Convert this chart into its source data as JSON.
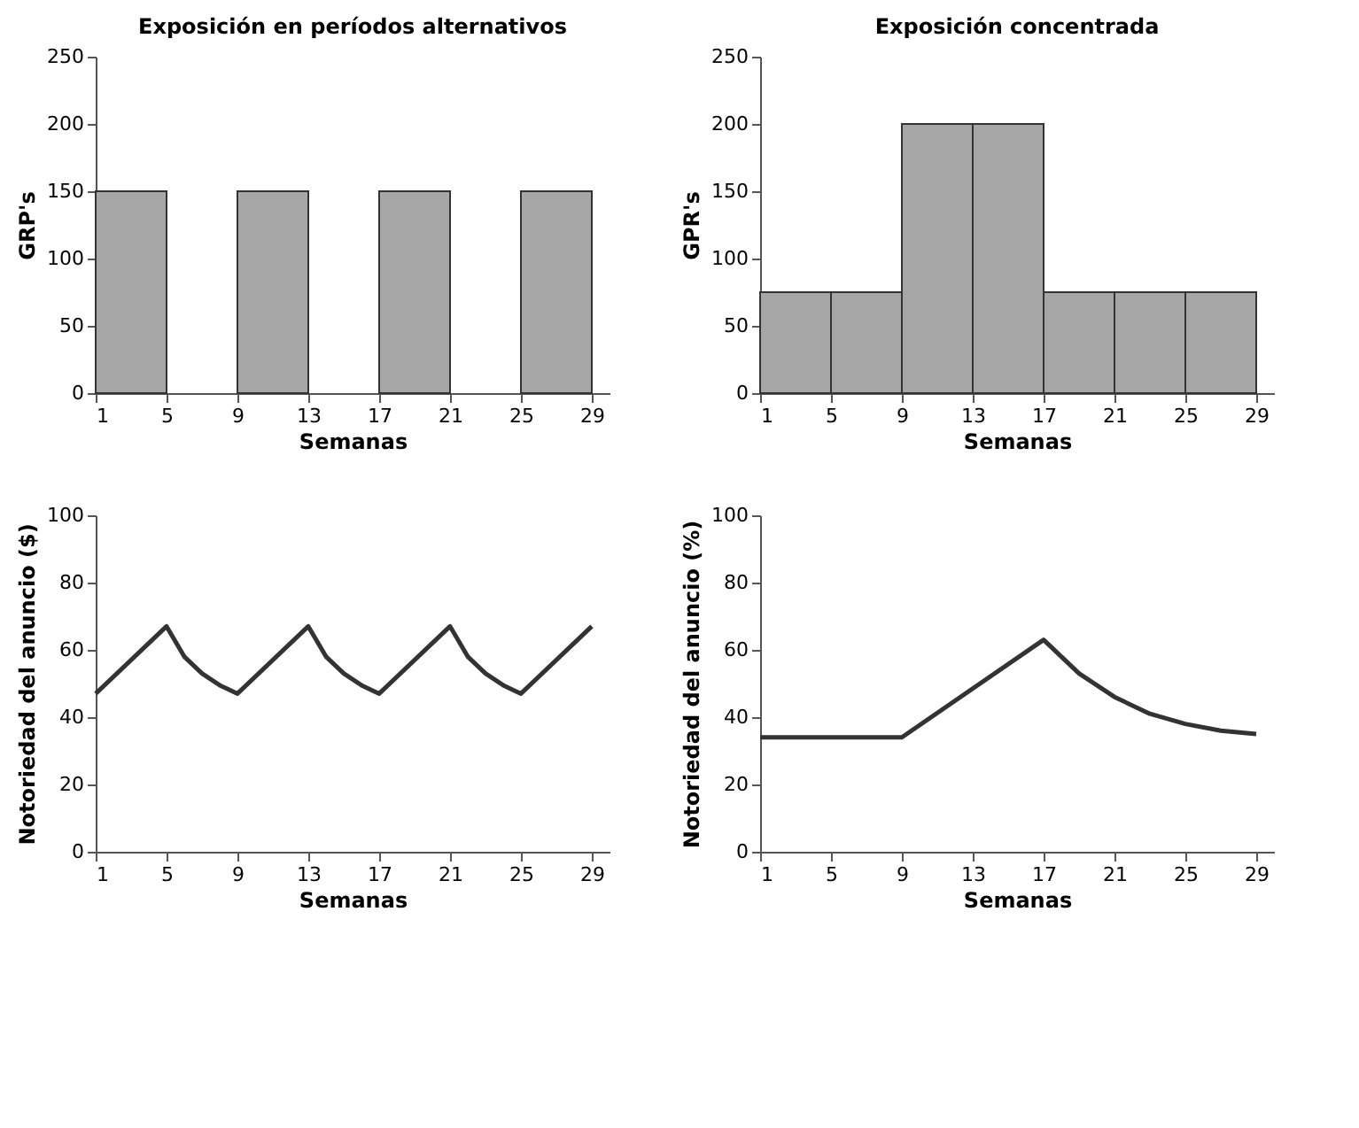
{
  "chart_data": [
    {
      "type": "histogram",
      "title": "Exposición en períodos alternativos",
      "xlabel": "Semanas",
      "ylabel": "GRP's",
      "bins": [
        1,
        5,
        9,
        13,
        17,
        21,
        25,
        29
      ],
      "values": [
        150,
        0,
        150,
        0,
        150,
        0,
        150
      ],
      "color": "#a6a6a6",
      "xlim": [
        1,
        30
      ],
      "xticks": [
        1,
        5,
        9,
        13,
        17,
        21,
        25,
        29
      ],
      "ylim": [
        0,
        250
      ],
      "yticks": [
        0,
        50,
        100,
        150,
        200,
        250
      ],
      "grid": false
    },
    {
      "type": "histogram",
      "title": "Exposición concentrada",
      "xlabel": "Semanas",
      "ylabel": "GPR's",
      "bins": [
        1,
        5,
        9,
        13,
        17,
        21,
        25,
        29
      ],
      "values": [
        75,
        75,
        200,
        200,
        75,
        75,
        75
      ],
      "color": "#a6a6a6",
      "xlim": [
        1,
        30
      ],
      "xticks": [
        1,
        5,
        9,
        13,
        17,
        21,
        25,
        29
      ],
      "ylim": [
        0,
        250
      ],
      "yticks": [
        0,
        50,
        100,
        150,
        200,
        250
      ],
      "grid": false
    },
    {
      "type": "line",
      "xlabel": "Semanas",
      "ylabel": "Notoriedad del anuncio ($)",
      "x": [
        1,
        5,
        6,
        7,
        8,
        9,
        13,
        14,
        15,
        16,
        17,
        21,
        22,
        23,
        24,
        25,
        29
      ],
      "series": [
        {
          "color": "#333333",
          "values": [
            47,
            67,
            58,
            53,
            49.5,
            47,
            67,
            58,
            53,
            49.5,
            47,
            67,
            58,
            53,
            49.5,
            47,
            67
          ]
        }
      ],
      "xlim": [
        1,
        30
      ],
      "xticks": [
        1,
        5,
        9,
        13,
        17,
        21,
        25,
        29
      ],
      "ylim": [
        0,
        100
      ],
      "yticks": [
        0,
        20,
        40,
        60,
        80,
        100
      ],
      "grid": false,
      "marker": "none"
    },
    {
      "type": "line",
      "xlabel": "Semanas",
      "ylabel": "Notoriedad del anuncio (%)",
      "x": [
        1,
        9,
        17,
        19,
        21,
        23,
        25,
        27,
        29
      ],
      "series": [
        {
          "color": "#333333",
          "values": [
            34,
            34,
            63,
            53,
            46,
            41,
            38,
            36,
            35
          ]
        }
      ],
      "xlim": [
        1,
        30
      ],
      "xticks": [
        1,
        5,
        9,
        13,
        17,
        21,
        25,
        29
      ],
      "ylim": [
        0,
        100
      ],
      "yticks": [
        0,
        20,
        40,
        60,
        80,
        100
      ],
      "grid": false,
      "marker": "none"
    }
  ]
}
